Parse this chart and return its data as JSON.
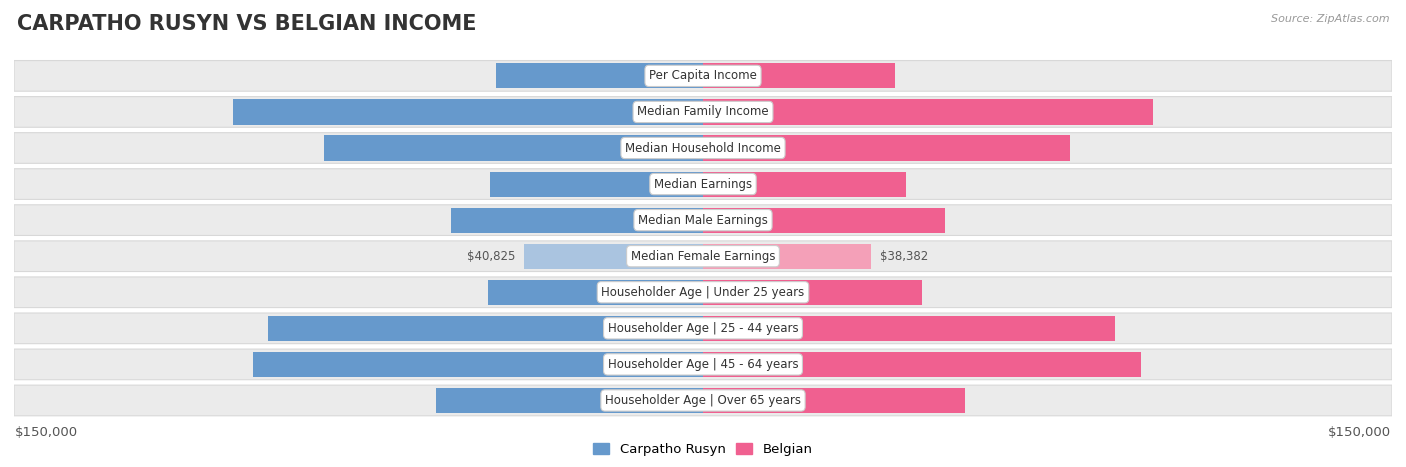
{
  "title": "CARPATHO RUSYN VS BELGIAN INCOME",
  "source": "Source: ZipAtlas.com",
  "categories": [
    "Per Capita Income",
    "Median Family Income",
    "Median Household Income",
    "Median Earnings",
    "Median Male Earnings",
    "Median Female Earnings",
    "Householder Age | Under 25 years",
    "Householder Age | 25 - 44 years",
    "Householder Age | 45 - 64 years",
    "Householder Age | Over 65 years"
  ],
  "carpatho_values": [
    47248,
    107502,
    86635,
    48617,
    57572,
    40825,
    49113,
    99449,
    102777,
    61093
  ],
  "belgian_values": [
    43951,
    102788,
    84008,
    46375,
    55361,
    38382,
    50113,
    94262,
    100060,
    59915
  ],
  "carpatho_color_light": "#aac4e0",
  "carpatho_color_strong": "#6699cc",
  "belgian_color_light": "#f4a0b8",
  "belgian_color_strong": "#f06090",
  "axis_limit": 150000,
  "background_color": "#ffffff",
  "row_bg_color": "#ebebeb",
  "title_fontsize": 15,
  "tick_fontsize": 9.5,
  "bar_label_fontsize": 8.5,
  "category_fontsize": 8.5,
  "inside_threshold": 0.28
}
